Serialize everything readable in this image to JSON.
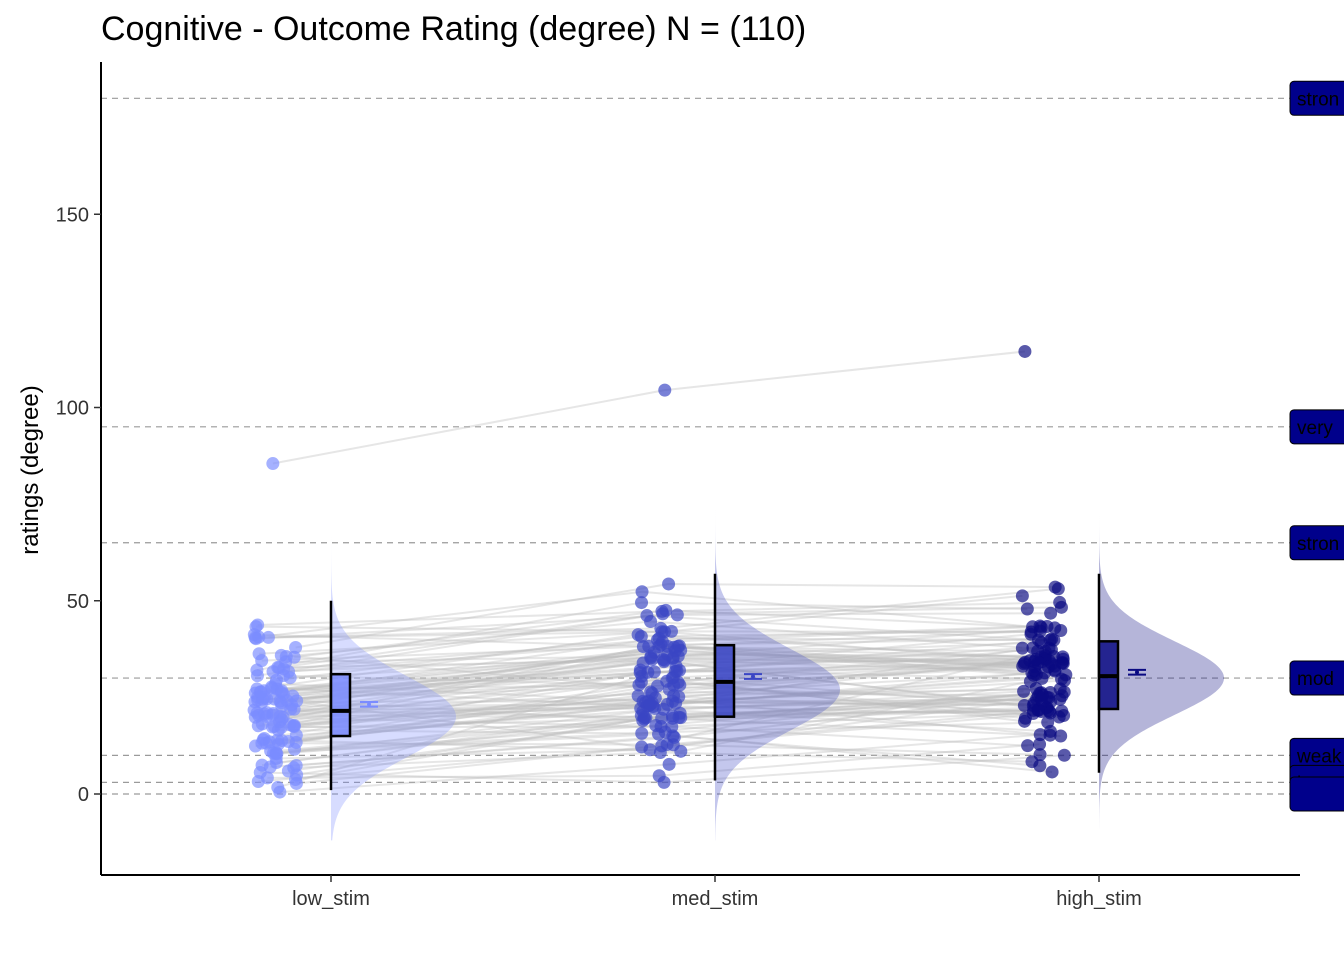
{
  "chart_data": {
    "type": "raincloud",
    "title": "Cognitive - Outcome Rating (degree) N = (110)",
    "ylabel": "ratings (degree)",
    "xlabel": "",
    "categories": [
      "low_stim",
      "med_stim",
      "high_stim"
    ],
    "ylim": [
      -21,
      190
    ],
    "yticks": [
      0,
      50,
      100,
      150
    ],
    "grid": false,
    "colors": {
      "low_stim": "#7b8cff",
      "med_stim": "#3a45c4",
      "high_stim": "#0a0a82"
    },
    "reference_lines": [
      {
        "value": 180,
        "label": "stron"
      },
      {
        "value": 95,
        "label": "very"
      },
      {
        "value": 65,
        "label": "stron"
      },
      {
        "value": 30,
        "label": "mod"
      },
      {
        "value": 10,
        "label": "weak"
      },
      {
        "value": 3,
        "label": "bare"
      },
      {
        "value": 0,
        "label": ""
      }
    ],
    "boxes": [
      {
        "name": "low_stim",
        "min": 1,
        "q1": 15,
        "median": 21.5,
        "q3": 31,
        "max": 50,
        "mean": 23.2,
        "mean_ci": [
          22.6,
          23.8
        ]
      },
      {
        "name": "med_stim",
        "min": 3.5,
        "q1": 20,
        "median": 29,
        "q3": 38.5,
        "max": 57,
        "mean": 30.4,
        "mean_ci": [
          29.8,
          31.0
        ]
      },
      {
        "name": "high_stim",
        "min": 5.5,
        "q1": 22,
        "median": 30.5,
        "q3": 39.5,
        "max": 57,
        "mean": 31.5,
        "mean_ci": [
          30.9,
          32.1
        ]
      }
    ],
    "densities": [
      {
        "name": "low_stim",
        "mode": 20,
        "sd": 10.5,
        "extent": [
          -12,
          97
        ]
      },
      {
        "name": "med_stim",
        "mode": 27,
        "sd": 10.5,
        "extent": [
          -12,
          119
        ]
      },
      {
        "name": "high_stim",
        "mode": 30,
        "sd": 9.5,
        "extent": [
          -9,
          128
        ]
      }
    ],
    "outlier_subject": [
      85.5,
      104.5,
      114.5
    ],
    "n_subjects": 110
  }
}
